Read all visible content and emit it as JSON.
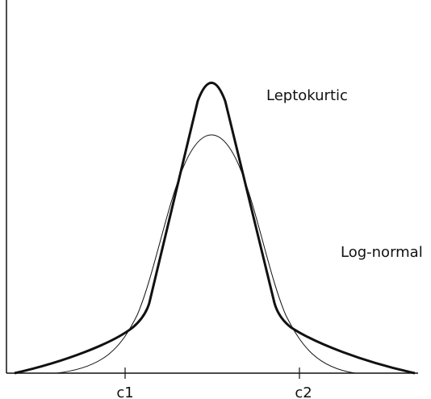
{
  "labels": {
    "leptokurtic": "Leptokurtic",
    "log_normal": "Log-normal"
  },
  "axis": {
    "ticks": [
      "c1",
      "c2"
    ]
  }
}
